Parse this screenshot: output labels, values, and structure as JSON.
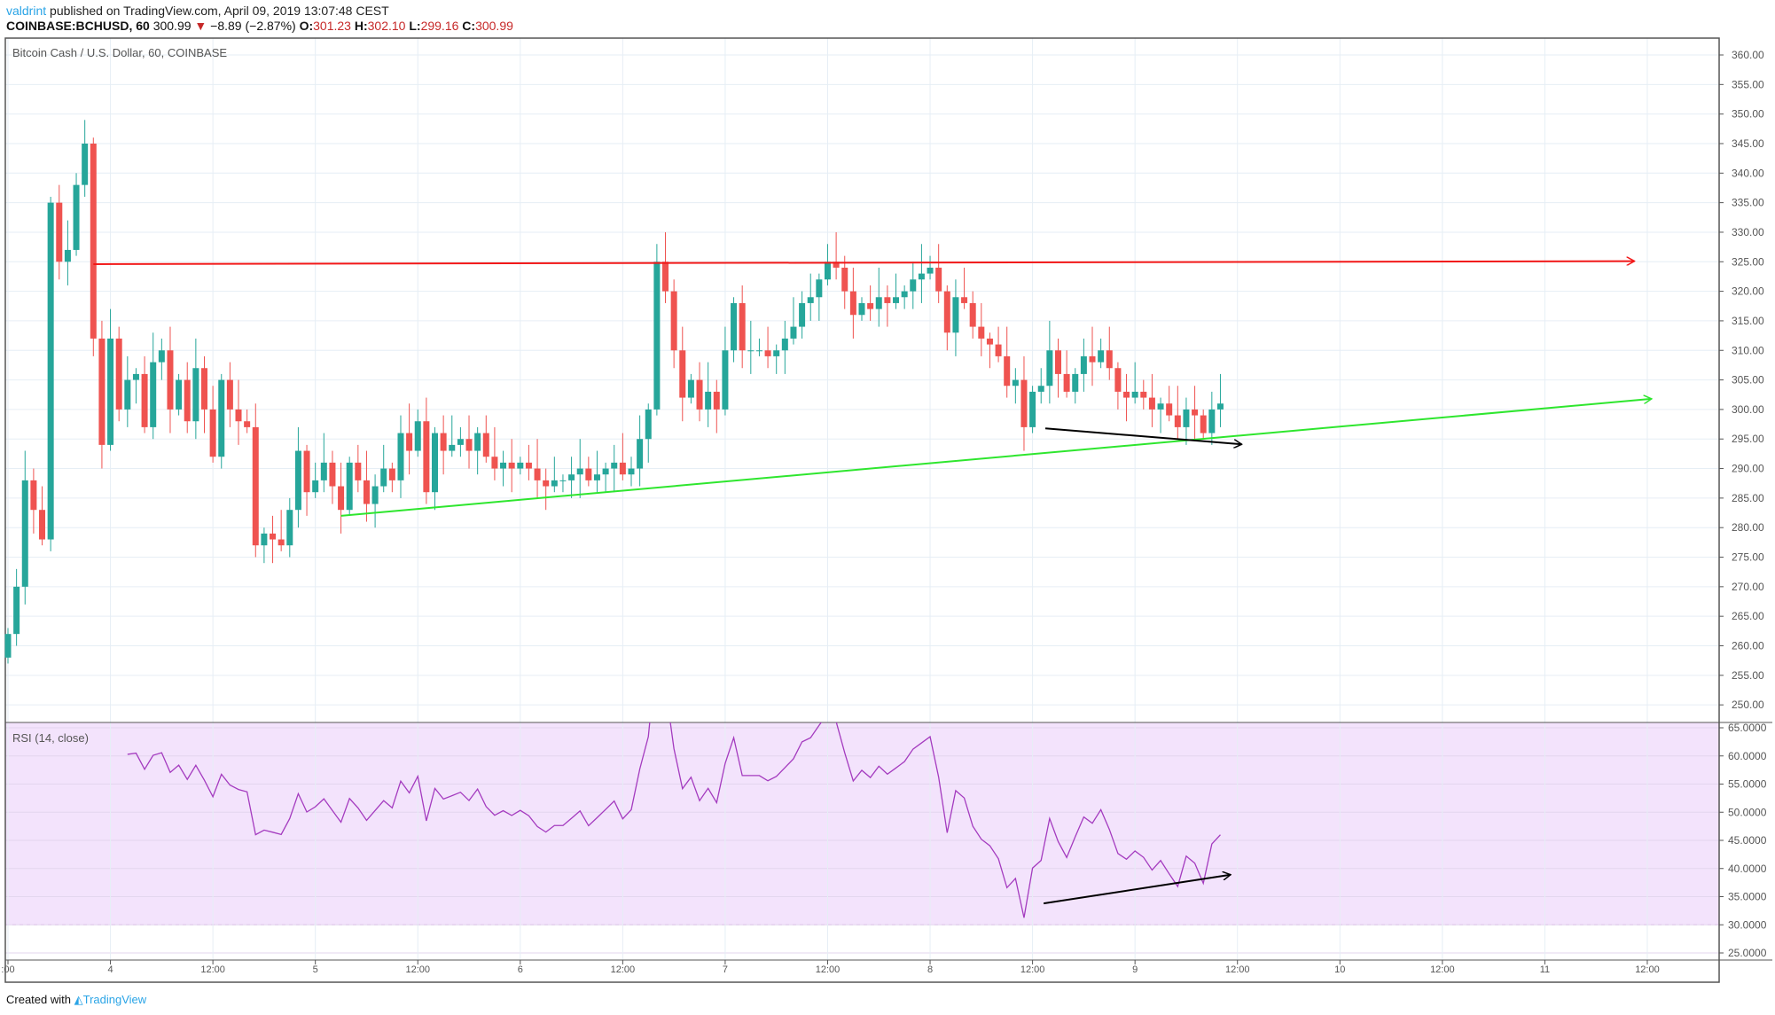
{
  "header": {
    "user": "valdrint",
    "published": "published on TradingView.com, April 09, 2019 13:07:48 CEST",
    "symbol": "COINBASE:BCHUSD, 60",
    "last": "300.99",
    "change": "−8.89 (−2.87%)",
    "o_label": "O:",
    "o": "301.23",
    "h_label": "H:",
    "h": "302.10",
    "l_label": "L:",
    "l": "299.16",
    "c_label": "C:",
    "c": "300.99"
  },
  "footer": {
    "created": "Created with",
    "brand": "TradingView"
  },
  "colors": {
    "up": "#26a69a",
    "down": "#ef5350",
    "rsi": "#a43bbf",
    "rsi_band": "#f3e3fc",
    "red_line": "#f21818",
    "green_line": "#2ee62e"
  },
  "chart_data": [
    {
      "type": "candlestick",
      "title": "Bitcoin Cash / U.S. Dollar, 60, COINBASE",
      "interval_hours": 1,
      "start": "Apr 3 12:00",
      "ylim": [
        247,
        362
      ],
      "yticks": [
        "360.00",
        "355.00",
        "350.00",
        "345.00",
        "340.00",
        "335.00",
        "330.00",
        "325.00",
        "320.00",
        "315.00",
        "310.00",
        "305.00",
        "300.00",
        "295.00",
        "290.00",
        "285.00",
        "280.00",
        "275.00",
        "270.00",
        "265.00",
        "260.00",
        "255.00",
        "250.00"
      ],
      "xticks": [
        {
          "h": 0,
          "label": ":00"
        },
        {
          "h": 12,
          "label": "4"
        },
        {
          "h": 24,
          "label": "12:00"
        },
        {
          "h": 36,
          "label": "5"
        },
        {
          "h": 48,
          "label": "12:00"
        },
        {
          "h": 60,
          "label": "6"
        },
        {
          "h": 72,
          "label": "12:00"
        },
        {
          "h": 84,
          "label": "7"
        },
        {
          "h": 96,
          "label": "12:00"
        },
        {
          "h": 108,
          "label": "8"
        },
        {
          "h": 120,
          "label": "12:00"
        },
        {
          "h": 132,
          "label": "9"
        },
        {
          "h": 144,
          "label": "12:00"
        },
        {
          "h": 156,
          "label": "10"
        },
        {
          "h": 168,
          "label": "12:00"
        },
        {
          "h": 180,
          "label": "11"
        },
        {
          "h": 192,
          "label": "12:00"
        }
      ],
      "first_open": 258,
      "closes": [
        262,
        270,
        288,
        283,
        278,
        335,
        325,
        327,
        338,
        345,
        312,
        294,
        312,
        300,
        305,
        306,
        297,
        308,
        310,
        300,
        305,
        298,
        307,
        300,
        292,
        305,
        300,
        298,
        297,
        277,
        279,
        278,
        277,
        283,
        293,
        286,
        288,
        291,
        287,
        283,
        291,
        288,
        284,
        287,
        290,
        288,
        296,
        293,
        298,
        286,
        296,
        293,
        294,
        295,
        293,
        296,
        292,
        290,
        291,
        290,
        291,
        290,
        288,
        287,
        288,
        288,
        289,
        290,
        288,
        289,
        290,
        291,
        289,
        290,
        295,
        300,
        325,
        320,
        310,
        302,
        305,
        300,
        303,
        300,
        310,
        318,
        310,
        310,
        310,
        309,
        310,
        312,
        314,
        318,
        319,
        322,
        325,
        324,
        320,
        316,
        318,
        317,
        319,
        318,
        319,
        320,
        322,
        323,
        324,
        320,
        313,
        319,
        318,
        314,
        312,
        311,
        309,
        304,
        305,
        297,
        303,
        304,
        310,
        306,
        303,
        306,
        309,
        308,
        310,
        307,
        303,
        302,
        303,
        302,
        300,
        301,
        299,
        297,
        300,
        299,
        296,
        300,
        301
      ],
      "drawings": [
        {
          "name": "resistance-line",
          "color": "red",
          "from": [
            10,
            324.6
          ],
          "to": [
            190.5,
            325.1
          ]
        },
        {
          "name": "support-line",
          "color": "green",
          "from": [
            39,
            282
          ],
          "to": [
            192.5,
            301.8
          ]
        },
        {
          "name": "price-divergence-arrow",
          "color": "black",
          "from": [
            121.5,
            296.8
          ],
          "to": [
            144.5,
            294.1
          ]
        }
      ]
    },
    {
      "type": "line",
      "title": "RSI (14, close)",
      "ylim": [
        23.5,
        66
      ],
      "band": [
        30,
        70
      ],
      "yticks": [
        "65.0000",
        "60.0000",
        "55.0000",
        "50.0000",
        "45.0000",
        "40.0000",
        "35.0000",
        "30.0000",
        "25.0000"
      ],
      "drawings": [
        {
          "name": "rsi-divergence-arrow",
          "color": "black",
          "from": [
            121.3,
            33.8
          ],
          "to": [
            143.2,
            38.9
          ]
        }
      ]
    }
  ]
}
